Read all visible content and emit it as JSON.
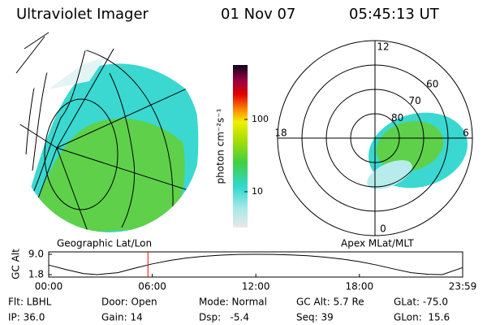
{
  "header": {
    "title": "Ultraviolet Imager",
    "date": "01 Nov 07",
    "time": "05:45:13 UT"
  },
  "map_labels": {
    "left": "Geographic Lat/Lon",
    "right": "Apex MLat/MLT"
  },
  "colorbar": {
    "label": "photon cm⁻²s⁻¹",
    "log_scale": true,
    "lim": [
      3.2,
      566
    ],
    "ticks": [
      10,
      100
    ]
  },
  "polar": {
    "mlt_labels": [
      "12",
      "6",
      "0",
      "18"
    ],
    "lat_ticks": [
      60,
      70,
      80
    ]
  },
  "gc_alt_plot": {
    "ylabel": "GC Alt",
    "xlim": [
      0,
      23.98
    ],
    "ylim": [
      1.8,
      9.0
    ],
    "yticks": [
      {
        "value": 9.0,
        "label": "9.0"
      },
      {
        "value": 1.8,
        "label": "1.8"
      }
    ],
    "xticks": [
      {
        "value": 0,
        "label": "00:00"
      },
      {
        "value": 6,
        "label": "06:00"
      },
      {
        "value": 12,
        "label": "12:00"
      },
      {
        "value": 18,
        "label": "18:00"
      },
      {
        "value": 23.98,
        "label": "23:59"
      }
    ],
    "x": [
      0,
      1,
      2,
      2.8,
      4,
      5,
      6,
      7,
      8,
      9,
      10,
      11,
      12,
      13,
      14,
      15,
      16,
      17,
      18,
      19,
      20,
      21,
      22,
      22.8,
      23.98
    ],
    "values": [
      5.2,
      3.6,
      2.2,
      1.8,
      2.5,
      4.1,
      5.6,
      6.8,
      7.7,
      8.3,
      8.7,
      8.95,
      9.0,
      8.95,
      8.8,
      8.5,
      8.0,
      7.3,
      6.4,
      5.2,
      3.8,
      2.5,
      1.9,
      1.8,
      4.3
    ],
    "marker_time": 5.75,
    "marker_color": "#ff0000"
  },
  "info": {
    "rows": [
      [
        "Flt: LBHL",
        "Door: Open",
        "Mode: Normal",
        "GC Alt: 5.7 Re",
        "GLat: -75.0"
      ],
      [
        "IP: 36.0",
        "Gain: 14",
        "Dsp:   -5.4",
        "Seq: 39",
        "GLon:  15.6"
      ]
    ]
  }
}
